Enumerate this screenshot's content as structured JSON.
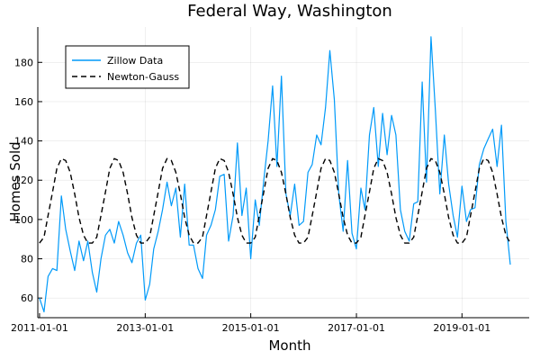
{
  "chart_data": {
    "type": "line",
    "title": "Federal Way, Washington",
    "xlabel": "Month",
    "ylabel": "Homes Sold",
    "xlim": [
      "2010-12-20",
      "2020-04-10"
    ],
    "ylim": [
      50,
      198
    ],
    "x_ticks": [
      "2011-01-01",
      "2013-01-01",
      "2015-01-01",
      "2017-01-01",
      "2019-01-01"
    ],
    "y_ticks": [
      60,
      80,
      100,
      120,
      140,
      160,
      180
    ],
    "grid": true,
    "legend_position": "top-left",
    "x": [
      "2011-01-01",
      "2011-02-01",
      "2011-03-01",
      "2011-04-01",
      "2011-05-01",
      "2011-06-01",
      "2011-07-01",
      "2011-08-01",
      "2011-09-01",
      "2011-10-01",
      "2011-11-01",
      "2011-12-01",
      "2012-01-01",
      "2012-02-01",
      "2012-03-01",
      "2012-04-01",
      "2012-05-01",
      "2012-06-01",
      "2012-07-01",
      "2012-08-01",
      "2012-09-01",
      "2012-10-01",
      "2012-11-01",
      "2012-12-01",
      "2013-01-01",
      "2013-02-01",
      "2013-03-01",
      "2013-04-01",
      "2013-05-01",
      "2013-06-01",
      "2013-07-01",
      "2013-08-01",
      "2013-09-01",
      "2013-10-01",
      "2013-11-01",
      "2013-12-01",
      "2014-01-01",
      "2014-02-01",
      "2014-03-01",
      "2014-04-01",
      "2014-05-01",
      "2014-06-01",
      "2014-07-01",
      "2014-08-01",
      "2014-09-01",
      "2014-10-01",
      "2014-11-01",
      "2014-12-01",
      "2015-01-01",
      "2015-02-01",
      "2015-03-01",
      "2015-04-01",
      "2015-05-01",
      "2015-06-01",
      "2015-07-01",
      "2015-08-01",
      "2015-09-01",
      "2015-10-01",
      "2015-11-01",
      "2015-12-01",
      "2016-01-01",
      "2016-02-01",
      "2016-03-01",
      "2016-04-01",
      "2016-05-01",
      "2016-06-01",
      "2016-07-01",
      "2016-08-01",
      "2016-09-01",
      "2016-10-01",
      "2016-11-01",
      "2016-12-01",
      "2017-01-01",
      "2017-02-01",
      "2017-03-01",
      "2017-04-01",
      "2017-05-01",
      "2017-06-01",
      "2017-07-01",
      "2017-08-01",
      "2017-09-01",
      "2017-10-01",
      "2017-11-01",
      "2017-12-01",
      "2018-01-01",
      "2018-02-01",
      "2018-03-01",
      "2018-04-01",
      "2018-05-01",
      "2018-06-01",
      "2018-07-01",
      "2018-08-01",
      "2018-09-01",
      "2018-10-01",
      "2018-11-01",
      "2018-12-01",
      "2019-01-01",
      "2019-02-01",
      "2019-03-01",
      "2019-04-01",
      "2019-05-01",
      "2019-06-01",
      "2019-07-01",
      "2019-08-01",
      "2019-09-01",
      "2019-10-01",
      "2019-11-01",
      "2019-12-01"
    ],
    "series": [
      {
        "name": "Zillow Data",
        "color": "#009af9",
        "dash": "solid",
        "values": [
          60,
          53,
          71,
          75,
          74,
          112,
          95,
          84,
          74,
          89,
          79,
          89,
          73,
          63,
          80,
          92,
          95,
          88,
          99,
          92,
          83,
          78,
          88,
          92,
          59,
          67,
          85,
          94,
          105,
          119,
          107,
          116,
          91,
          118,
          87,
          87,
          75,
          70,
          92,
          97,
          105,
          122,
          123,
          89,
          102,
          139,
          102,
          116,
          80,
          110,
          97,
          120,
          140,
          168,
          127,
          173,
          113,
          102,
          118,
          97,
          99,
          124,
          128,
          143,
          138,
          157,
          186,
          161,
          113,
          94,
          130,
          93,
          85,
          116,
          105,
          143,
          157,
          127,
          154,
          133,
          153,
          143,
          105,
          94,
          89,
          108,
          109,
          170,
          119,
          193,
          156,
          113,
          143,
          118,
          102,
          91,
          117,
          99,
          105,
          106,
          128,
          136,
          141,
          146,
          127,
          148,
          99,
          77
        ]
      },
      {
        "name": "Newton-Gauss",
        "color": "#000000",
        "dash": "dashed",
        "values": [
          88,
          91,
          102,
          114,
          126,
          131,
          130,
          124,
          113,
          101,
          92,
          88,
          88,
          91,
          102,
          114,
          126,
          131,
          130,
          124,
          113,
          101,
          92,
          88,
          88,
          91,
          102,
          114,
          126,
          131,
          130,
          124,
          113,
          101,
          92,
          88,
          88,
          91,
          102,
          114,
          126,
          131,
          130,
          124,
          113,
          101,
          92,
          88,
          88,
          91,
          102,
          114,
          126,
          131,
          130,
          124,
          113,
          101,
          92,
          88,
          88,
          91,
          102,
          114,
          126,
          131,
          130,
          124,
          113,
          101,
          92,
          88,
          88,
          91,
          102,
          114,
          126,
          131,
          130,
          124,
          113,
          101,
          92,
          88,
          88,
          91,
          102,
          114,
          126,
          131,
          130,
          124,
          113,
          101,
          92,
          88,
          88,
          91,
          102,
          114,
          126,
          131,
          130,
          124,
          113,
          101,
          92,
          88
        ]
      }
    ]
  }
}
